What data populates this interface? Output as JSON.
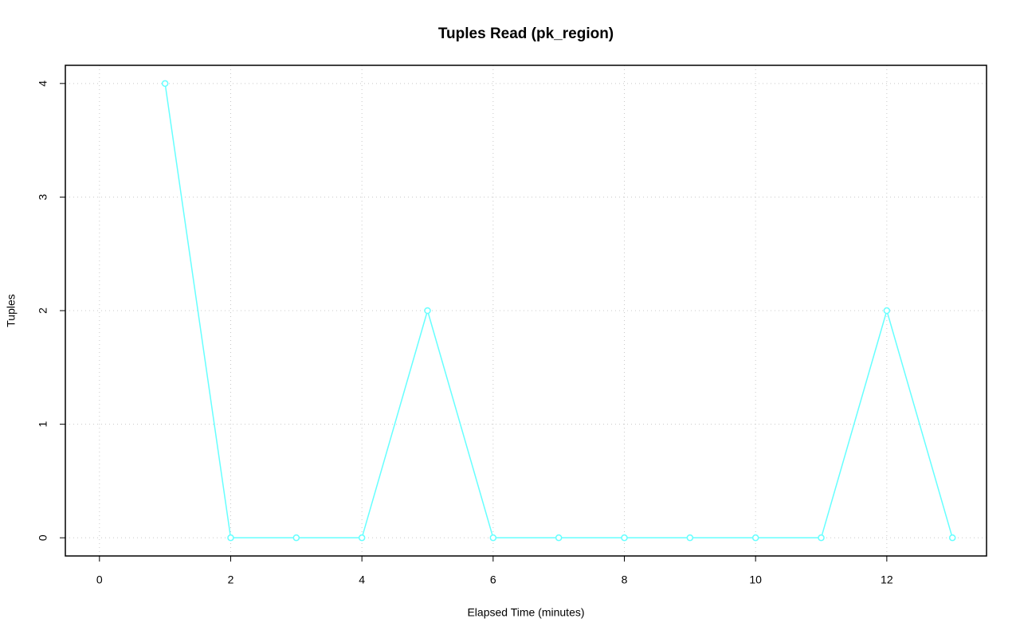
{
  "chart_data": {
    "type": "line",
    "title": "Tuples Read (pk_region)",
    "x_label": "Elapsed Time (minutes)",
    "y_label": "Tuples",
    "x": [
      1,
      2,
      3,
      4,
      5,
      6,
      7,
      8,
      9,
      10,
      11,
      12,
      13
    ],
    "series": [
      {
        "color": "#66ffff",
        "values": [
          4,
          0,
          0,
          0,
          2,
          0,
          0,
          0,
          0,
          0,
          0,
          2,
          0
        ]
      }
    ],
    "xlim": [
      -0.52,
      13.52
    ],
    "ylim": [
      -0.16,
      4.16
    ],
    "xticks": [
      0,
      2,
      4,
      6,
      8,
      10,
      12
    ],
    "yticks": [
      0,
      1,
      2,
      3,
      4
    ],
    "grid": true
  }
}
